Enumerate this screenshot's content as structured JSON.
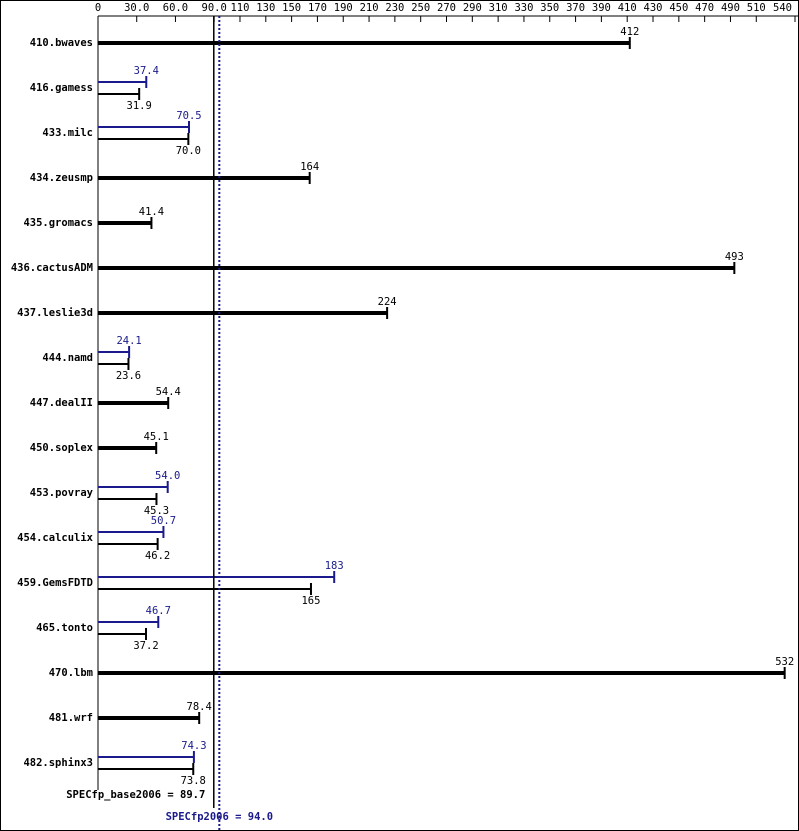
{
  "chart_data": {
    "type": "bar",
    "orientation": "horizontal",
    "categories": [
      "410.bwaves",
      "416.gamess",
      "433.milc",
      "434.zeusmp",
      "435.gromacs",
      "436.cactusADM",
      "437.leslie3d",
      "444.namd",
      "447.dealII",
      "450.soplex",
      "453.povray",
      "454.calculix",
      "459.GemsFDTD",
      "465.tonto",
      "470.lbm",
      "481.wrf",
      "482.sphinx3"
    ],
    "series": [
      {
        "color": "#1a1a8c",
        "values": [
          null,
          37.4,
          70.5,
          null,
          null,
          null,
          null,
          24.1,
          null,
          null,
          54.0,
          50.7,
          183,
          46.7,
          null,
          null,
          74.3
        ],
        "value_labels": [
          null,
          "37.4",
          "70.5",
          null,
          null,
          null,
          null,
          "24.1",
          null,
          null,
          "54.0",
          "50.7",
          "183",
          "46.7",
          null,
          null,
          "74.3"
        ]
      },
      {
        "color": "#000000",
        "values": [
          412,
          31.9,
          70.0,
          164,
          41.4,
          493,
          224,
          23.6,
          54.4,
          45.1,
          45.3,
          46.2,
          165,
          37.2,
          532,
          78.4,
          73.8
        ],
        "value_labels": [
          "412",
          "31.9",
          "70.0",
          "164",
          "41.4",
          "493",
          "224",
          "23.6",
          "54.4",
          "45.1",
          "45.3",
          "46.2",
          "165",
          "37.2",
          "532",
          "78.4",
          "73.8"
        ]
      }
    ],
    "xlim": [
      0,
      540
    ],
    "xticks": [
      0,
      {
        "value": 30,
        "label": "30.0"
      },
      {
        "value": 60,
        "label": "60.0"
      },
      {
        "value": 90,
        "label": "90.0"
      },
      110,
      130,
      150,
      170,
      190,
      210,
      230,
      250,
      270,
      290,
      310,
      330,
      350,
      370,
      390,
      410,
      430,
      450,
      470,
      490,
      510,
      540
    ],
    "reference_lines": [
      {
        "value": 89.7,
        "label": "SPECfp_base2006 = 89.7",
        "color": "#000000",
        "style": "solid"
      },
      {
        "value": 94.0,
        "label": "SPECfp2006 = 94.0",
        "color": "#1a1a8c",
        "style": "dotted"
      }
    ]
  }
}
